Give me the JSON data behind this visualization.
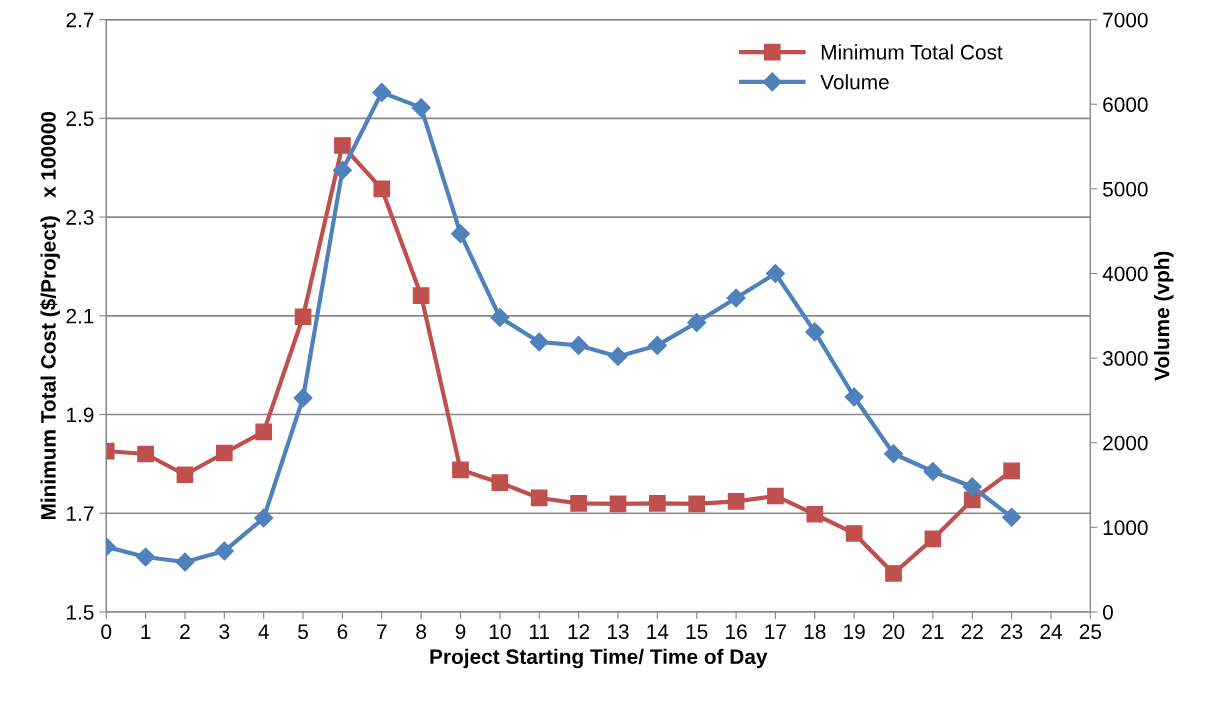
{
  "chart_data": {
    "type": "line",
    "xlabel": "Project Starting Time/ Time of Day",
    "ylabel": "Minimum Total Cost ($/Project)   x 100000",
    "y2label": "Volume (vph)",
    "x": [
      0,
      1,
      2,
      3,
      4,
      5,
      6,
      7,
      8,
      9,
      10,
      11,
      12,
      13,
      14,
      15,
      16,
      17,
      18,
      19,
      20,
      21,
      22,
      23
    ],
    "series": [
      {
        "name": "Minimum Total Cost",
        "color": "#c0504d",
        "marker": "square",
        "values": [
          1.826,
          1.82,
          1.778,
          1.822,
          1.865,
          2.098,
          2.445,
          2.357,
          2.141,
          1.788,
          1.762,
          1.731,
          1.72,
          1.719,
          1.72,
          1.719,
          1.724,
          1.735,
          1.698,
          1.659,
          1.578,
          1.648,
          1.727,
          1.786
        ]
      },
      {
        "name": "Volume",
        "color": "#4f81bd",
        "marker": "diamond",
        "axis": "y2",
        "values": [
          770,
          650,
          590,
          720,
          1110,
          2530,
          5220,
          6140,
          5960,
          4470,
          3480,
          3190,
          3150,
          3020,
          3150,
          3420,
          3710,
          4000,
          3310,
          2540,
          1870,
          1660,
          1480,
          1120
        ]
      }
    ],
    "xlim": [
      0,
      25
    ],
    "xticks": [
      0,
      1,
      2,
      3,
      4,
      5,
      6,
      7,
      8,
      9,
      10,
      11,
      12,
      13,
      14,
      15,
      16,
      17,
      18,
      19,
      20,
      21,
      22,
      23,
      24,
      25
    ],
    "ylim": [
      1.5,
      2.7
    ],
    "yticks": [
      1.5,
      1.7,
      1.9,
      2.1,
      2.3,
      2.5,
      2.7
    ],
    "y2lim": [
      0,
      7000
    ],
    "y2ticks": [
      0,
      1000,
      2000,
      3000,
      4000,
      5000,
      6000,
      7000
    ],
    "grid": "y",
    "legend": "top right",
    "line_style": "solid"
  }
}
